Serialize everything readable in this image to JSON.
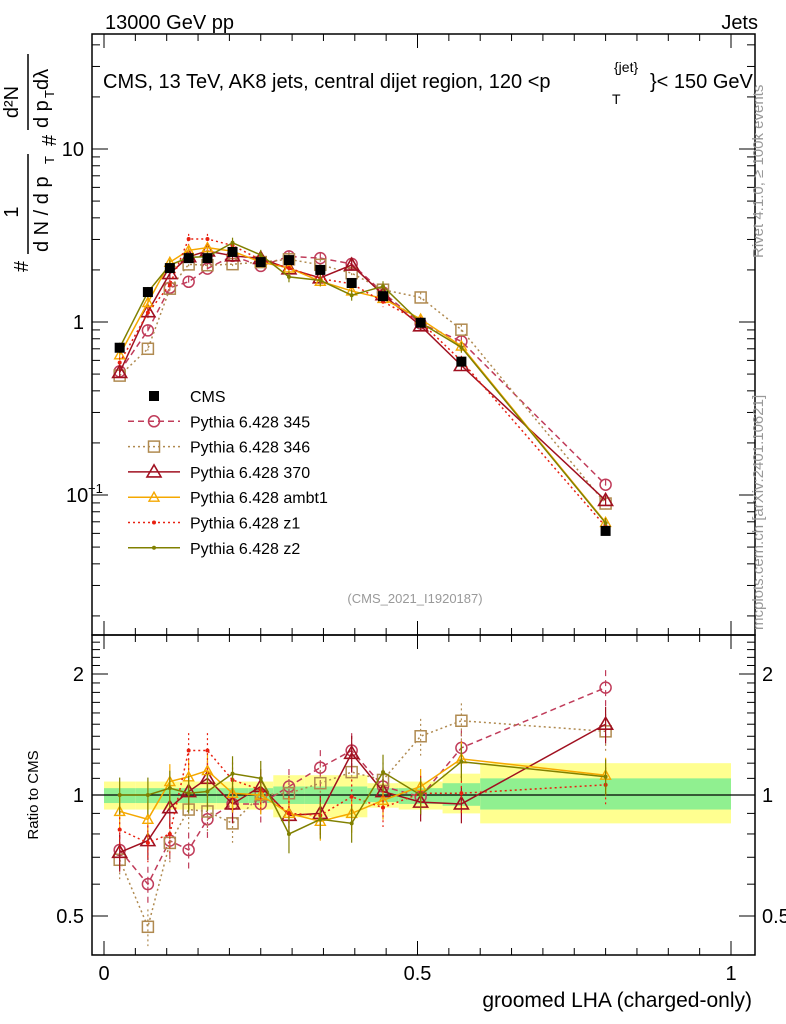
{
  "header": {
    "left": "13000 GeV pp",
    "right": "Jets"
  },
  "side_labels": {
    "rivet": "Rivet 4.1.0, ≥ 100k events",
    "mcplots": "mcplots.cern.ch [arXiv:2401.10621]"
  },
  "analysis_id": "(CMS_2021_I1920187)",
  "title": {
    "main": "CMS, 13 TeV, AK8 jets, central dijet region, 120 <p",
    "sub": "T",
    "sup": "{jet}",
    "tail": "}< 150 GeV"
  },
  "ylabel_main": {
    "hash1": "#",
    "num1": "1",
    "den1": "d N / d p",
    "den1_sub": "T",
    "hash2": "#",
    "num2": "d²N",
    "den2": "d p",
    "den2_sub": "T",
    "den2_tail": " dλ"
  },
  "chart_data": {
    "type": "line",
    "xlabel": "groomed LHA (charged-only)",
    "ylabel_ratio": "Ratio to CMS",
    "xlim": [
      0,
      1
    ],
    "ylim_main": [
      0.0155,
      46
    ],
    "yscale_main": "log",
    "ylim_ratio": [
      0.4,
      2.5
    ],
    "yscale_ratio": "log",
    "x_ticks": [
      "0",
      "0.5",
      "1"
    ],
    "x_tick_values": [
      0,
      0.5,
      1
    ],
    "y_ticks_main": [
      {
        "value": 10,
        "label": "10"
      },
      {
        "value": 1,
        "label": "1"
      },
      {
        "value": 0.1,
        "label": "10",
        "exp": "−1"
      }
    ],
    "y_ticks_ratio": [
      {
        "value": 2,
        "label": "2"
      },
      {
        "value": 1,
        "label": "1"
      },
      {
        "value": 0.5,
        "label": "0.5"
      }
    ],
    "bin_edges": [
      0,
      0.05,
      0.09,
      0.12,
      0.15,
      0.18,
      0.23,
      0.27,
      0.32,
      0.37,
      0.42,
      0.47,
      0.54,
      0.6,
      1.0
    ],
    "x": [
      0.025,
      0.07,
      0.105,
      0.135,
      0.165,
      0.205,
      0.25,
      0.295,
      0.345,
      0.395,
      0.445,
      0.505,
      0.57,
      0.8
    ],
    "data": {
      "name": "CMS",
      "values": [
        0.71,
        1.49,
        2.05,
        2.34,
        2.34,
        2.54,
        2.22,
        2.28,
        2.0,
        1.68,
        1.41,
        0.99,
        0.59,
        0.062
      ]
    },
    "uncertainty_bands": {
      "stat_low": [
        0.955,
        0.955,
        0.955,
        0.955,
        0.955,
        0.955,
        0.955,
        0.95,
        0.95,
        0.95,
        0.96,
        0.95,
        0.94,
        0.92
      ],
      "stat_high": [
        1.04,
        1.04,
        1.04,
        1.04,
        1.04,
        1.04,
        1.04,
        1.05,
        1.05,
        1.05,
        1.04,
        1.04,
        1.07,
        1.1
      ],
      "total_low": [
        0.92,
        0.92,
        0.92,
        0.92,
        0.92,
        0.92,
        0.92,
        0.88,
        0.88,
        0.88,
        0.93,
        0.92,
        0.9,
        0.85
      ],
      "total_high": [
        1.08,
        1.08,
        1.08,
        1.08,
        1.08,
        1.08,
        1.08,
        1.12,
        1.12,
        1.12,
        1.07,
        1.08,
        1.13,
        1.2
      ],
      "stat_color": "#90f090",
      "total_color": "#ffff90"
    },
    "series": [
      {
        "name": "Pythia 6.428 345",
        "color": "#c03c5a",
        "dash": "6,4",
        "marker": "circle",
        "ratio": [
          0.73,
          0.6,
          0.77,
          0.73,
          0.87,
          0.95,
          0.95,
          1.05,
          1.17,
          1.29,
          1.05,
          0.99,
          1.31,
          1.85
        ]
      },
      {
        "name": "Pythia 6.428 346",
        "color": "#b08a50",
        "dash": "2,3",
        "marker": "square",
        "ratio": [
          0.69,
          0.47,
          0.76,
          0.92,
          0.91,
          0.85,
          1.0,
          1.01,
          1.07,
          1.14,
          1.09,
          1.4,
          1.53,
          1.44
        ]
      },
      {
        "name": "Pythia 6.428 370",
        "color": "#a01020",
        "dash": "",
        "marker": "triangle",
        "ratio": [
          0.72,
          0.77,
          0.93,
          1.02,
          1.1,
          0.95,
          1.05,
          0.89,
          0.9,
          1.27,
          1.02,
          0.96,
          0.95,
          1.5
        ]
      },
      {
        "name": "Pythia 6.428 ambt1",
        "color": "#f5a800",
        "dash": "",
        "marker": "small-triangle",
        "ratio": [
          0.91,
          0.87,
          1.08,
          1.11,
          1.15,
          1.01,
          1.0,
          0.9,
          0.86,
          0.9,
          0.97,
          1.05,
          1.23,
          1.12
        ]
      },
      {
        "name": "Pythia 6.428 z1",
        "color": "#e82010",
        "dash": "2,3",
        "marker": "dot",
        "ratio": [
          0.82,
          0.76,
          0.8,
          1.29,
          1.29,
          1.09,
          1.03,
          0.9,
          0.89,
          0.99,
          0.93,
          1.01,
          1.01,
          1.06
        ]
      },
      {
        "name": "Pythia 6.428 z2",
        "color": "#808000",
        "dash": "",
        "marker": "dot",
        "ratio": [
          1.0,
          1.0,
          1.04,
          1.01,
          1.02,
          1.13,
          1.1,
          0.8,
          0.87,
          0.85,
          1.14,
          1.0,
          1.21,
          1.11
        ]
      }
    ],
    "legend_placement": "center-left"
  }
}
